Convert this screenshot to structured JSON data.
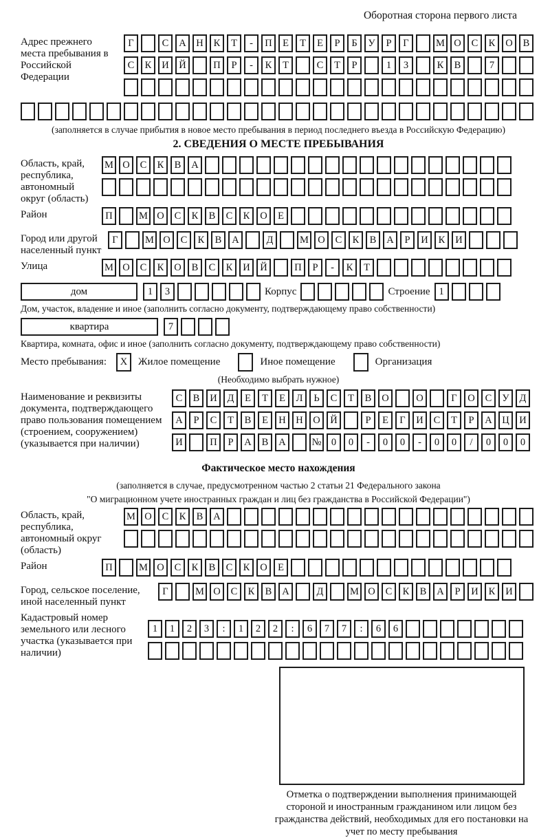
{
  "page": {
    "back_title": "Оборотная сторона первого листа"
  },
  "prev_address": {
    "label": "Адрес прежнего места пребывания в Российской Федерации",
    "rows": [
      "Г САНКТ-ПЕТЕРБУРГ МОСКОВ",
      "СКИЙ ПР-КТ СТР 13 КВ 7",
      "",
      ""
    ],
    "note": "(заполняется в случае прибытия в новое место пребывания в период последнего въезда в Российскую Федерацию)"
  },
  "section2": {
    "heading": "2. СВЕДЕНИЯ О МЕСТЕ ПРЕБЫВАНИЯ",
    "region": {
      "label": "Область, край, республика, автономный округ (область)",
      "rows": [
        "МОСКВА",
        ""
      ]
    },
    "district": {
      "label": "Район",
      "value": "П МОСКВСКОЕ"
    },
    "city": {
      "label": "Город или другой населенный пункт",
      "value": "Г МОСКВА Д МОСКВАРИКИ"
    },
    "street": {
      "label": "Улица",
      "value": "МОСКОВСКИЙ ПР-КТ"
    },
    "house": {
      "box_label": "дом",
      "value": "13",
      "korpus_label": "Корпус",
      "korpus_value": "",
      "stroenie_label": "Строение",
      "stroenie_value": "1",
      "note": "Дом, участок, владение и иное (заполнить согласно документу, подтверждающему право собственности)"
    },
    "apartment": {
      "box_label": "квартира",
      "value": "7",
      "note": "Квартира, комната, офис и иное (заполнить согласно документу, подтверждающему право собственности)"
    },
    "stay_type": {
      "label": "Место пребывания:",
      "options": [
        "Жилое помещение",
        "Иное помещение",
        "Организация"
      ],
      "marks": [
        "X",
        "",
        ""
      ],
      "note": "(Необходимо выбрать нужное)"
    },
    "document": {
      "label": "Наименование и реквизиты документа, подтверждающего право пользования помещением (строением, сооружением) (указывается при наличии)",
      "rows": [
        "СВИДЕТЕЛЬСТВО О ГОСУД",
        "АРСТВЕННОЙ РЕГИСТРАЦИ",
        "И ПРАВА №00-00-00/000"
      ]
    }
  },
  "actual_location": {
    "heading": "Фактическое место нахождения",
    "note_line1": "(заполняется в случае, предусмотренном частью 2 статьи 21 Федерального закона",
    "note_line2": "\"О миграционном учете иностранных граждан и лиц без гражданства в Российской Федерации\")",
    "region": {
      "label": "Область, край, республика, автономный округ (область)",
      "rows": [
        "МОСКВА",
        ""
      ]
    },
    "district": {
      "label": "Район",
      "value": "П МОСКВСКОЕ"
    },
    "city": {
      "label": "Город, сельское поселение, иной населенный пункт",
      "value": "Г МОСКВА Д МОСКВАРИКИ"
    },
    "cadastral": {
      "label": "Кадастровый номер земельного или лесного участка (указывается при наличии)",
      "rows": [
        "1123:122:677:66",
        ""
      ]
    }
  },
  "confirmation": {
    "note": "Отметка о подтверждении выполнения принимающей стороной и иностранным гражданином или лицом без гражданства действий, необходимых для его постановки на учет по месту пребывания"
  }
}
